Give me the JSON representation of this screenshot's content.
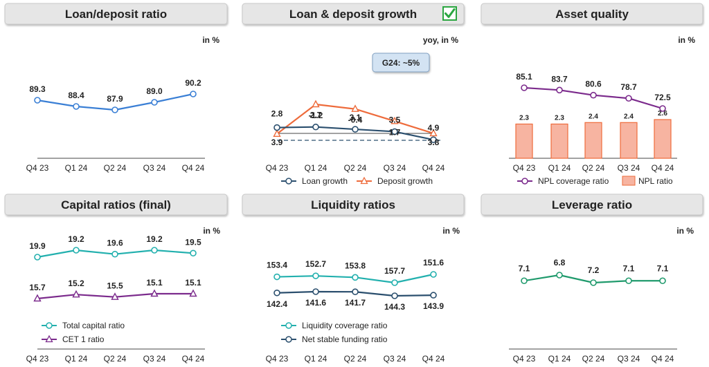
{
  "panels": [
    {
      "title": "Loan/deposit ratio",
      "unit": "in %"
    },
    {
      "title": "Loan & deposit growth",
      "unit": "yoy, in %",
      "badge": "G24: ~5%",
      "check": true
    },
    {
      "title": "Asset quality",
      "unit": "in %"
    },
    {
      "title": "Capital ratios (final)",
      "unit": "in %"
    },
    {
      "title": "Liquidity ratios",
      "unit": "in %"
    },
    {
      "title": "Leverage ratio",
      "unit": "in %"
    }
  ],
  "colors": {
    "blue": "#3a7fd5",
    "navy": "#2b4f6e",
    "orange": "#ee6b3b",
    "purple": "#7b2a8c",
    "teal": "#22b0ae",
    "green": "#1f9a6c",
    "bar_fill": "#f7b4a1",
    "bar_stroke": "#ee6b3b",
    "title_bg": "#e6e6e6"
  },
  "chart_data": [
    {
      "type": "line",
      "categories": [
        "Q4 23",
        "Q1 24",
        "Q2 24",
        "Q3 24",
        "Q4 24"
      ],
      "series": [
        {
          "values": [
            89.3,
            88.4,
            87.9,
            89.0,
            90.2
          ]
        }
      ]
    },
    {
      "type": "line",
      "categories": [
        "Q4 23",
        "Q1 24",
        "Q2 24",
        "Q3 24",
        "Q4 24"
      ],
      "series": [
        {
          "name": "Loan growth",
          "values": [
            2.8,
            2.7,
            3.1,
            3.5,
            4.9
          ]
        },
        {
          "name": "Deposit growth",
          "values": [
            3.9,
            -1.2,
            -0.4,
            1.7,
            3.8
          ]
        }
      ],
      "reference_line": 5
    },
    {
      "type": "bar",
      "categories": [
        "Q4 23",
        "Q1 24",
        "Q2 24",
        "Q3 24",
        "Q4 24"
      ],
      "series": [
        {
          "name": "NPL coverage ratio",
          "type": "line",
          "values": [
            85.1,
            83.7,
            80.6,
            78.7,
            72.5
          ]
        },
        {
          "name": "NPL ratio",
          "type": "bar",
          "values": [
            2.3,
            2.3,
            2.4,
            2.4,
            2.6
          ]
        }
      ]
    },
    {
      "type": "line",
      "categories": [
        "Q4 23",
        "Q1 24",
        "Q2 24",
        "Q3 24",
        "Q4 24"
      ],
      "series": [
        {
          "name": "Total capital ratio",
          "values": [
            19.9,
            19.2,
            19.6,
            19.2,
            19.5
          ]
        },
        {
          "name": "CET 1 ratio",
          "values": [
            15.7,
            15.2,
            15.5,
            15.1,
            15.1
          ]
        }
      ]
    },
    {
      "type": "line",
      "categories": [
        "Q4 23",
        "Q1 24",
        "Q2 24",
        "Q3 24",
        "Q4 24"
      ],
      "series": [
        {
          "name": "Liquidity coverage ratio",
          "values": [
            153.4,
            152.7,
            153.8,
            157.7,
            151.6
          ]
        },
        {
          "name": "Net stable funding ratio",
          "values": [
            142.4,
            141.6,
            141.7,
            144.3,
            143.9
          ]
        }
      ]
    },
    {
      "type": "line",
      "categories": [
        "Q4 23",
        "Q1 24",
        "Q2 24",
        "Q3 24",
        "Q4 24"
      ],
      "series": [
        {
          "values": [
            7.1,
            6.8,
            7.2,
            7.1,
            7.1
          ]
        }
      ]
    }
  ]
}
